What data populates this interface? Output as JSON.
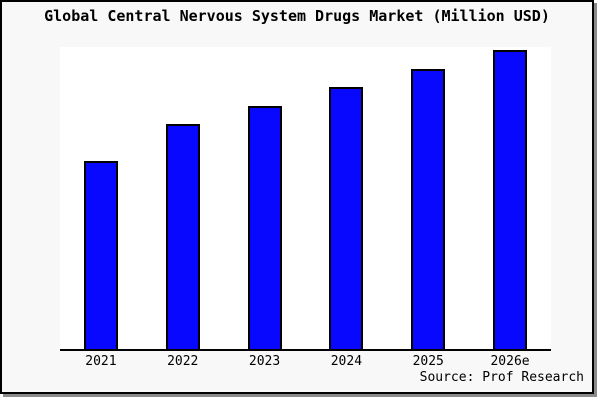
{
  "chart_data": {
    "type": "bar",
    "title": "Global Central Nervous System Drugs Market (Million USD)",
    "categories": [
      "2021",
      "2022",
      "2023",
      "2024",
      "2025",
      "2026e"
    ],
    "values": [
      62.8,
      75.4,
      81.4,
      87.7,
      93.7,
      100
    ],
    "units": "unlabeled y-axis; values are relative bar magnitudes indexed to 2026e = 100",
    "ylim": [
      0,
      101
    ],
    "xlabel": "",
    "ylabel": "",
    "y_axis_ticks_visible": false,
    "gridlines": false,
    "legend": false,
    "source_note": "Source: Prof Research",
    "colors": {
      "bar_fill": "#0808ff",
      "bar_border": "#000000",
      "axis_line": "#000000",
      "plot_background": "#ffffff",
      "frame_background": "#f8f8f8",
      "frame_border": "#000000",
      "frame_shadow": "#8a8a8a",
      "text": "#000000"
    }
  }
}
